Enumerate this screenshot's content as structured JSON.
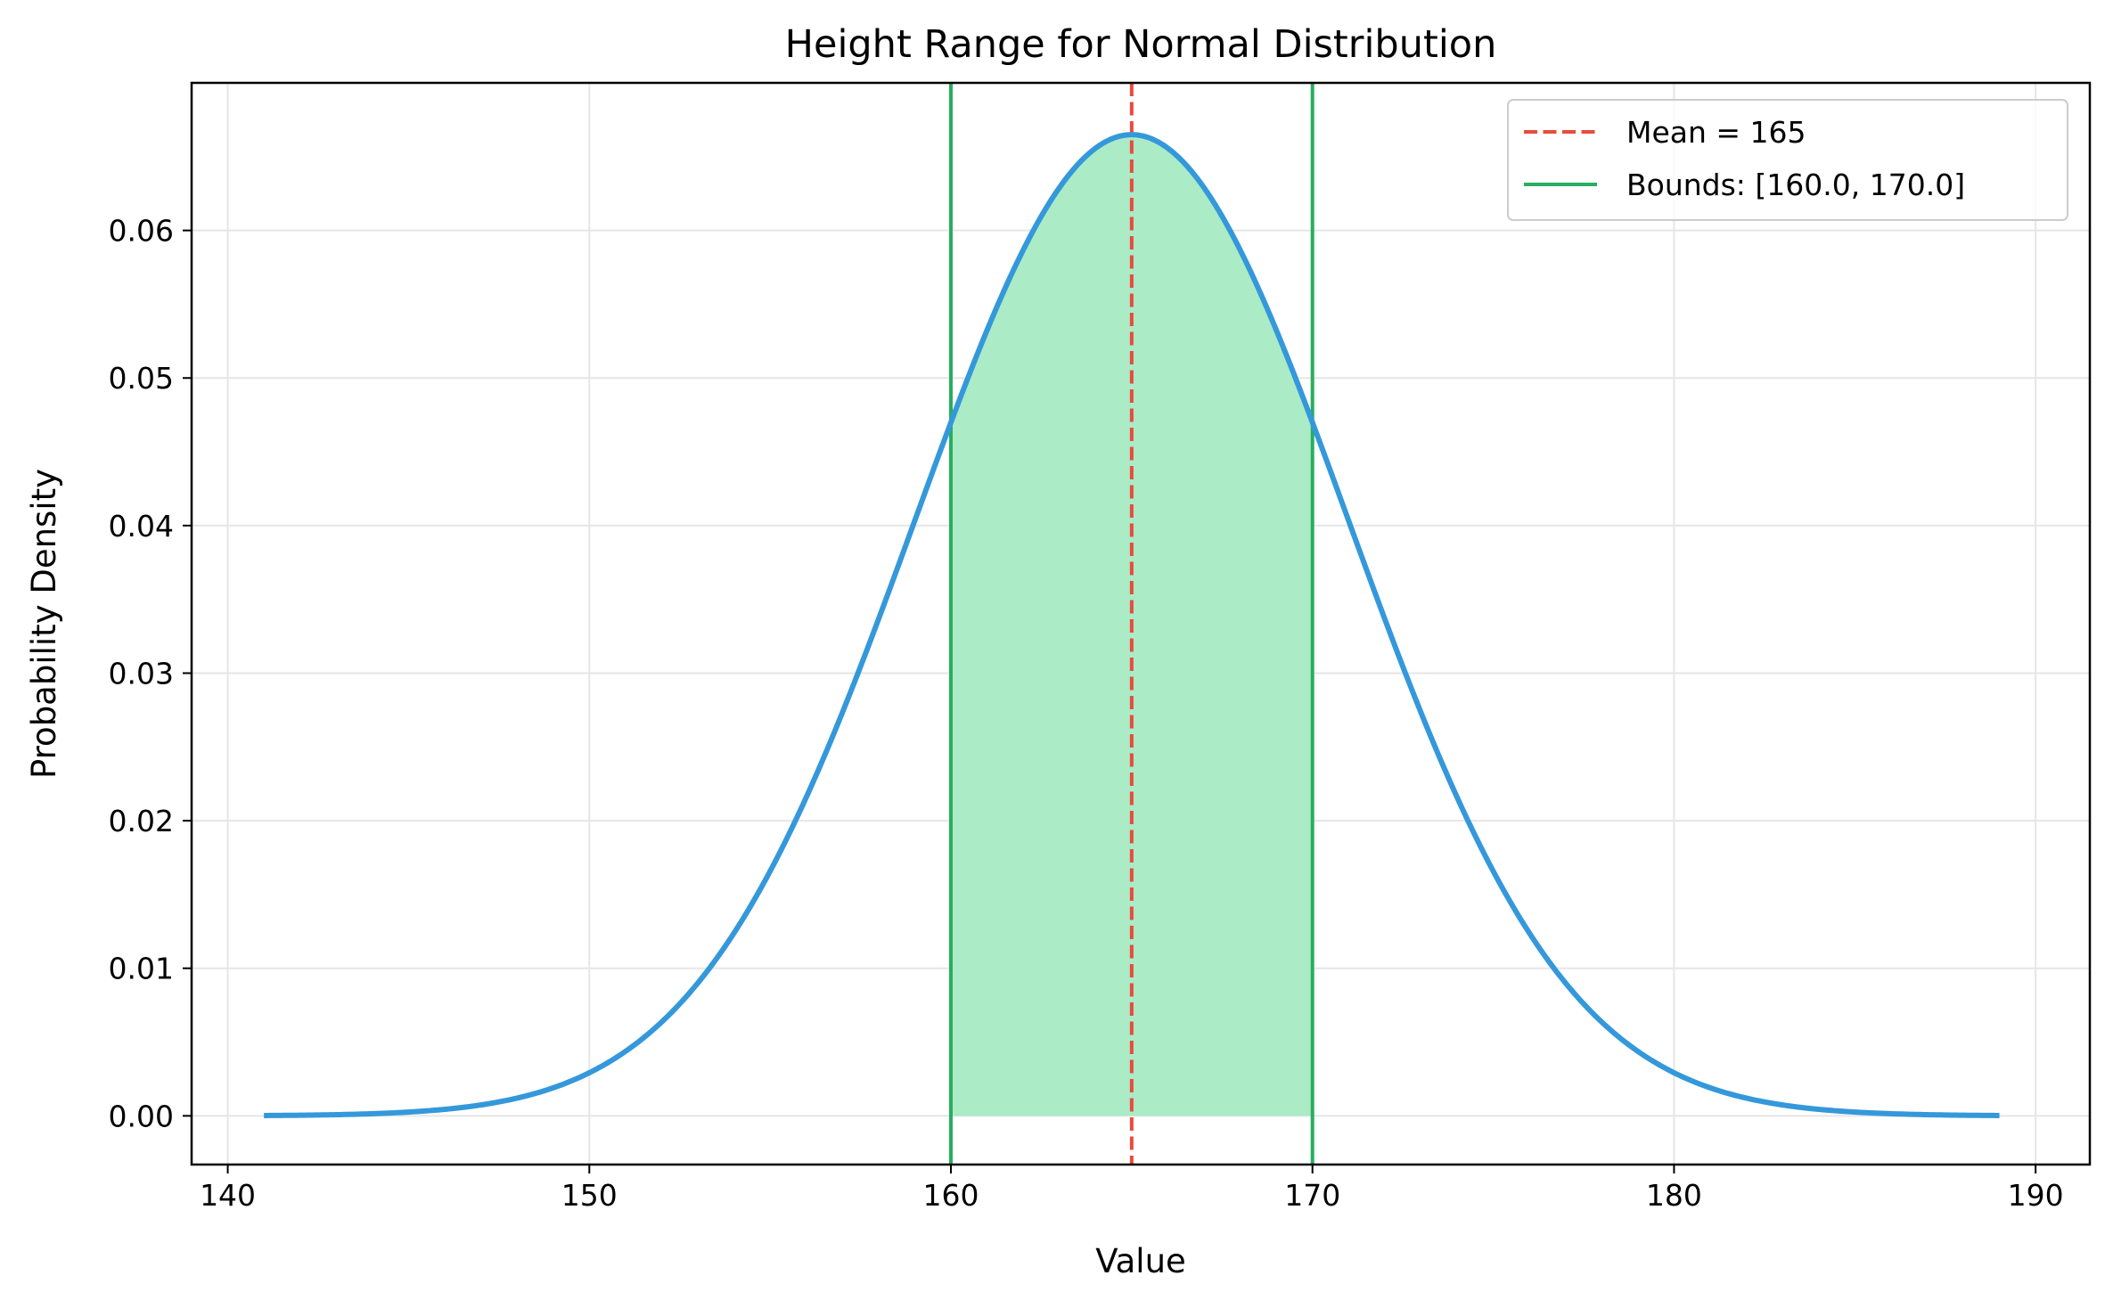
{
  "chart_data": {
    "type": "line",
    "title": "Height Range for Normal Distribution",
    "xlabel": "Value",
    "ylabel": "Probability Density",
    "xlim": [
      139,
      191.5
    ],
    "ylim": [
      -0.0033,
      0.07
    ],
    "x_ticks": [
      140,
      150,
      160,
      170,
      180,
      190
    ],
    "x_tick_labels": [
      "140",
      "150",
      "160",
      "170",
      "180",
      "190"
    ],
    "y_ticks": [
      0.0,
      0.01,
      0.02,
      0.03,
      0.04,
      0.05,
      0.06
    ],
    "y_tick_labels": [
      "0.00",
      "0.01",
      "0.02",
      "0.03",
      "0.04",
      "0.05",
      "0.06"
    ],
    "grid": true,
    "legend_position": "top-right",
    "curve": {
      "mean": 165,
      "std": 6,
      "x_range": [
        141,
        189
      ],
      "color": "#3498db"
    },
    "shaded_region": {
      "x_range": [
        160.0,
        170.0
      ],
      "color": "#abebc6"
    },
    "vlines": [
      {
        "x": 165,
        "style": "dashed",
        "color": "#e74c3c"
      },
      {
        "x": 160.0,
        "style": "solid",
        "color": "#27ae60"
      },
      {
        "x": 170.0,
        "style": "solid",
        "color": "#27ae60"
      }
    ],
    "legend": [
      {
        "label": "Mean = 165",
        "style": "dashed",
        "color": "#e74c3c"
      },
      {
        "label": "Bounds: [160.0, 170.0]",
        "style": "solid",
        "color": "#27ae60"
      }
    ]
  }
}
